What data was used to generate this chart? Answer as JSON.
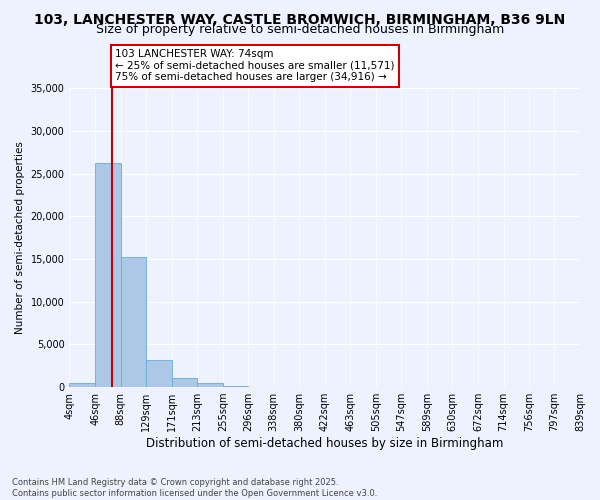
{
  "title": "103, LANCHESTER WAY, CASTLE BROMWICH, BIRMINGHAM, B36 9LN",
  "subtitle": "Size of property relative to semi-detached houses in Birmingham",
  "xlabel": "Distribution of semi-detached houses by size in Birmingham",
  "ylabel": "Number of semi-detached properties",
  "bar_edges": [
    4,
    46,
    88,
    129,
    171,
    213,
    255,
    296,
    338,
    380,
    422,
    463,
    505,
    547,
    589,
    630,
    672,
    714,
    756,
    797,
    839
  ],
  "bar_heights": [
    500,
    26200,
    15300,
    3200,
    1100,
    500,
    80,
    30,
    15,
    10,
    5,
    3,
    2,
    2,
    1,
    1,
    1,
    0,
    0,
    0
  ],
  "bar_color": "#adc8e6",
  "bar_edge_color": "#6aaad4",
  "property_size": 74,
  "property_label": "103 LANCHESTER WAY: 74sqm",
  "pct_smaller": 25,
  "n_smaller": 11571,
  "pct_larger": 75,
  "n_larger": 34916,
  "vline_color": "#cc0000",
  "annotation_box_color": "#cc0000",
  "ylim": [
    0,
    35000
  ],
  "yticks": [
    0,
    5000,
    10000,
    15000,
    20000,
    25000,
    30000,
    35000
  ],
  "bg_color": "#eef2ff",
  "grid_color": "#ffffff",
  "footer": "Contains HM Land Registry data © Crown copyright and database right 2025.\nContains public sector information licensed under the Open Government Licence v3.0.",
  "title_fontsize": 10,
  "subtitle_fontsize": 9,
  "xlabel_fontsize": 8.5,
  "ylabel_fontsize": 7.5,
  "tick_fontsize": 7,
  "annotation_fontsize": 7.5,
  "footer_fontsize": 6
}
